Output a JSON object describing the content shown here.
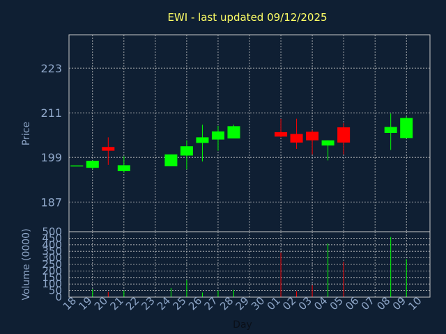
{
  "chart_data": {
    "type": "candlestick",
    "title": "EWI - last updated 09/12/2025",
    "price_panel": {
      "ylabel": "Price",
      "yticks": [
        187,
        199,
        211,
        223
      ],
      "ylim": [
        179,
        232
      ]
    },
    "volume_panel": {
      "ylabel": "Volume (0000)",
      "yticks": [
        0,
        50,
        100,
        150,
        200,
        250,
        300,
        350,
        400,
        450,
        500
      ],
      "ylim": [
        0,
        500
      ]
    },
    "xlabel": "Day",
    "x_tick_labels": [
      "18",
      "19",
      "20",
      "21",
      "22",
      "23",
      "24",
      "25",
      "26",
      "27",
      "28",
      "29",
      "30",
      "01",
      "02",
      "03",
      "04",
      "05",
      "06",
      "07",
      "08",
      "09",
      "10"
    ],
    "grid": true,
    "colors": {
      "up": "#00ff00",
      "down": "#ff0000",
      "background": "#0f1f33",
      "grid": "#c8c8c8",
      "title": "#ffff66",
      "label": "#8fa7c9"
    },
    "candles": [
      {
        "x": "18",
        "open": 196.7,
        "close": 196.7,
        "high": 196.7,
        "low": 196.7,
        "volume": 0
      },
      {
        "x": "19",
        "open": 196.2,
        "close": 198.1,
        "high": 198.2,
        "low": 195.8,
        "volume": 60
      },
      {
        "x": "20",
        "open": 201.8,
        "close": 200.8,
        "high": 204.4,
        "low": 197.0,
        "volume": 40
      },
      {
        "x": "21",
        "open": 195.3,
        "close": 196.9,
        "high": 199.3,
        "low": 194.9,
        "volume": 50
      },
      {
        "x": "24",
        "open": 196.6,
        "close": 199.8,
        "high": 199.8,
        "low": 196.6,
        "volume": 70
      },
      {
        "x": "25",
        "open": 199.5,
        "close": 202.0,
        "high": 203.6,
        "low": 195.8,
        "volume": 130
      },
      {
        "x": "26",
        "open": 202.9,
        "close": 204.4,
        "high": 207.8,
        "low": 197.9,
        "volume": 35
      },
      {
        "x": "27",
        "open": 203.8,
        "close": 206.0,
        "high": 207.5,
        "low": 200.8,
        "volume": 50
      },
      {
        "x": "28",
        "open": 204.1,
        "close": 207.4,
        "high": 207.8,
        "low": 204.1,
        "volume": 55
      },
      {
        "x": "01",
        "open": 205.8,
        "close": 204.6,
        "high": 209.4,
        "low": 204.4,
        "volume": 340
      },
      {
        "x": "02",
        "open": 205.3,
        "close": 203.0,
        "high": 209.4,
        "low": 201.3,
        "volume": 45
      },
      {
        "x": "03",
        "open": 205.9,
        "close": 203.6,
        "high": 206.3,
        "low": 199.8,
        "volume": 90
      },
      {
        "x": "04",
        "open": 202.2,
        "close": 203.6,
        "high": 203.6,
        "low": 198.2,
        "volume": 410
      },
      {
        "x": "05",
        "open": 207.1,
        "close": 203.0,
        "high": 208.2,
        "low": 199.8,
        "volume": 270
      },
      {
        "x": "08",
        "open": 205.6,
        "close": 207.2,
        "high": 210.8,
        "low": 201.0,
        "volume": 460
      },
      {
        "x": "09",
        "open": 204.2,
        "close": 209.6,
        "high": 210.0,
        "low": 204.2,
        "volume": 290
      }
    ]
  }
}
